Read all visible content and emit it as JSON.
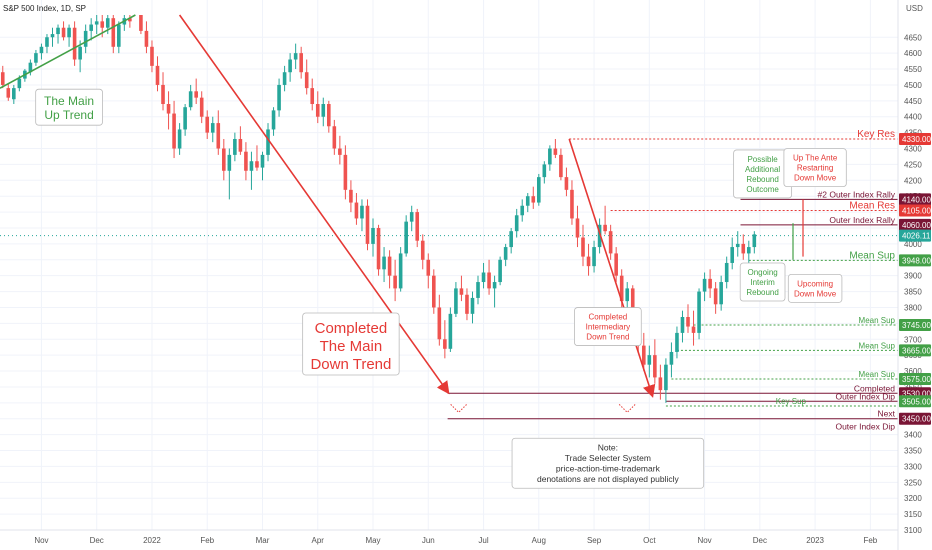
{
  "chart_data": {
    "type": "candlestick",
    "title": "S&P 500 Index, 1D, SP",
    "y_axis_title": "USD",
    "ylim": [
      3100,
      4720
    ],
    "y_ticks": [
      4650,
      4600,
      4550,
      4500,
      4450,
      4400,
      4350,
      4300,
      4250,
      4200,
      4150,
      4100,
      4050,
      4000,
      3950,
      3900,
      3850,
      3800,
      3750,
      3700,
      3650,
      3600,
      3550,
      3500,
      3450,
      3400,
      3350,
      3300,
      3250,
      3200,
      3150,
      3100
    ],
    "x_ticks": [
      "Nov",
      "Dec",
      "2022",
      "Feb",
      "Mar",
      "Apr",
      "May",
      "Jun",
      "Jul",
      "Aug",
      "Sep",
      "Oct",
      "Nov",
      "Dec",
      "2023",
      "Feb"
    ],
    "x_tick_positions": [
      0.5,
      1.5,
      2.5,
      3.5,
      4.5,
      5.5,
      6.5,
      7.5,
      8.5,
      9.5,
      10.5,
      11.5,
      12.5,
      13.5,
      14.5,
      15.5
    ],
    "x_range": [
      -0.25,
      16.0
    ],
    "colors": {
      "up": "#26a69a",
      "down": "#ef5350",
      "trend_up": "#43a047",
      "trend_down": "#e53935",
      "res": "#7a1535",
      "sup": "#43a047",
      "key_res": "#e53935"
    },
    "levels": [
      {
        "price": 4330,
        "tag": "4330.00",
        "text": "Key Res",
        "kind": "key_res",
        "start": 10.05
      },
      {
        "price": 4140,
        "tag": "4140.00",
        "text": "#2 Outer Index Rally",
        "kind": "res",
        "start": 13.15
      },
      {
        "price": 4105,
        "tag": "4105.00",
        "text": "Mean Res",
        "kind": "mean_res",
        "start": 10.8
      },
      {
        "price": 4060,
        "tag": "4060.00",
        "text": "Outer Index Rally",
        "kind": "res",
        "start": 13.15
      },
      {
        "price": 4026.11,
        "tag": "4026.11",
        "text": "",
        "kind": "last",
        "start": -0.25
      },
      {
        "price": 3948,
        "tag": "3948.00",
        "text": "Mean Sup",
        "kind": "mean_sup",
        "start": 13.3
      },
      {
        "price": 3745,
        "tag": "3745.00",
        "text": "Mean Sup",
        "kind": "sup",
        "start": 12.3
      },
      {
        "price": 3665,
        "tag": "3665.00",
        "text": "Mean Sup",
        "kind": "sup",
        "start": 12.0
      },
      {
        "price": 3575,
        "tag": "3575.00",
        "text": "Mean Sup",
        "kind": "sup",
        "start": 11.9
      },
      {
        "price": 3530,
        "tag": "3530.00",
        "text": "Completed",
        "kind": "res",
        "start": 7.85
      },
      {
        "price": 3505,
        "tag": "3505.00",
        "text": "Outer Index Dip",
        "kind": "sup_solid",
        "start": 11.8
      },
      {
        "price": 3490,
        "tag": "",
        "text": "Key Sup",
        "kind": "key_sup",
        "start": 11.8
      },
      {
        "price": 3450,
        "tag": "3450.00",
        "text": "Next",
        "kind": "res",
        "start": 7.85
      },
      {
        "price": 3425,
        "tag": "",
        "text": "Outer Index Dip",
        "kind": "res_text",
        "start": 0
      }
    ],
    "candles": [
      [
        -0.2,
        4540,
        4560,
        4490,
        4500
      ],
      [
        -0.1,
        4490,
        4505,
        4450,
        4460
      ],
      [
        0.0,
        4455,
        4500,
        4440,
        4490
      ],
      [
        0.1,
        4490,
        4530,
        4480,
        4520
      ],
      [
        0.2,
        4520,
        4550,
        4510,
        4545
      ],
      [
        0.3,
        4540,
        4580,
        4530,
        4570
      ],
      [
        0.4,
        4570,
        4610,
        4560,
        4600
      ],
      [
        0.5,
        4600,
        4630,
        4580,
        4620
      ],
      [
        0.6,
        4620,
        4660,
        4600,
        4650
      ],
      [
        0.7,
        4650,
        4680,
        4620,
        4660
      ],
      [
        0.8,
        4660,
        4690,
        4630,
        4680
      ],
      [
        0.9,
        4680,
        4700,
        4640,
        4650
      ],
      [
        1.0,
        4650,
        4690,
        4620,
        4680
      ],
      [
        1.1,
        4680,
        4700,
        4560,
        4580
      ],
      [
        1.2,
        4580,
        4640,
        4540,
        4620
      ],
      [
        1.3,
        4620,
        4690,
        4600,
        4670
      ],
      [
        1.4,
        4670,
        4710,
        4640,
        4690
      ],
      [
        1.5,
        4690,
        4720,
        4660,
        4700
      ],
      [
        1.6,
        4700,
        4720,
        4650,
        4680
      ],
      [
        1.7,
        4680,
        4720,
        4660,
        4710
      ],
      [
        1.8,
        4710,
        4720,
        4600,
        4620
      ],
      [
        1.9,
        4620,
        4700,
        4600,
        4690
      ],
      [
        2.0,
        4690,
        4720,
        4670,
        4710
      ],
      [
        2.1,
        4710,
        4720,
        4680,
        4700
      ],
      [
        2.3,
        4720,
        4720,
        4660,
        4670
      ],
      [
        2.4,
        4670,
        4700,
        4600,
        4620
      ],
      [
        2.5,
        4620,
        4640,
        4540,
        4560
      ],
      [
        2.6,
        4560,
        4590,
        4480,
        4500
      ],
      [
        2.7,
        4500,
        4540,
        4420,
        4440
      ],
      [
        2.8,
        4440,
        4480,
        4360,
        4410
      ],
      [
        2.9,
        4410,
        4450,
        4270,
        4300
      ],
      [
        3.0,
        4300,
        4380,
        4280,
        4360
      ],
      [
        3.1,
        4360,
        4440,
        4340,
        4430
      ],
      [
        3.2,
        4430,
        4500,
        4420,
        4480
      ],
      [
        3.3,
        4480,
        4520,
        4440,
        4460
      ],
      [
        3.4,
        4460,
        4480,
        4380,
        4400
      ],
      [
        3.5,
        4400,
        4420,
        4330,
        4350
      ],
      [
        3.6,
        4350,
        4400,
        4320,
        4380
      ],
      [
        3.7,
        4380,
        4420,
        4280,
        4300
      ],
      [
        3.8,
        4300,
        4330,
        4200,
        4230
      ],
      [
        3.9,
        4230,
        4300,
        4140,
        4280
      ],
      [
        4.0,
        4280,
        4350,
        4260,
        4330
      ],
      [
        4.1,
        4330,
        4370,
        4280,
        4290
      ],
      [
        4.2,
        4290,
        4320,
        4200,
        4230
      ],
      [
        4.3,
        4230,
        4290,
        4170,
        4260
      ],
      [
        4.4,
        4260,
        4310,
        4230,
        4240
      ],
      [
        4.5,
        4240,
        4290,
        4200,
        4280
      ],
      [
        4.6,
        4280,
        4380,
        4260,
        4360
      ],
      [
        4.7,
        4360,
        4430,
        4340,
        4420
      ],
      [
        4.8,
        4420,
        4520,
        4400,
        4500
      ],
      [
        4.9,
        4500,
        4560,
        4480,
        4540
      ],
      [
        5.0,
        4540,
        4600,
        4510,
        4580
      ],
      [
        5.1,
        4580,
        4630,
        4550,
        4600
      ],
      [
        5.2,
        4600,
        4620,
        4520,
        4540
      ],
      [
        5.3,
        4540,
        4580,
        4470,
        4490
      ],
      [
        5.4,
        4490,
        4520,
        4420,
        4440
      ],
      [
        5.5,
        4440,
        4480,
        4380,
        4400
      ],
      [
        5.6,
        4400,
        4460,
        4370,
        4440
      ],
      [
        5.7,
        4440,
        4450,
        4350,
        4370
      ],
      [
        5.8,
        4370,
        4390,
        4280,
        4300
      ],
      [
        5.9,
        4300,
        4340,
        4250,
        4280
      ],
      [
        6.0,
        4280,
        4310,
        4140,
        4170
      ],
      [
        6.1,
        4170,
        4200,
        4100,
        4130
      ],
      [
        6.2,
        4130,
        4160,
        4060,
        4080
      ],
      [
        6.3,
        4080,
        4140,
        4040,
        4120
      ],
      [
        6.4,
        4120,
        4140,
        3980,
        4000
      ],
      [
        6.5,
        4000,
        4080,
        3960,
        4050
      ],
      [
        6.6,
        4050,
        4060,
        3900,
        3920
      ],
      [
        6.7,
        3920,
        3990,
        3880,
        3960
      ],
      [
        6.8,
        3960,
        3980,
        3860,
        3900
      ],
      [
        6.9,
        3900,
        3950,
        3820,
        3860
      ],
      [
        7.0,
        3860,
        3990,
        3850,
        3970
      ],
      [
        7.1,
        3970,
        4090,
        3960,
        4070
      ],
      [
        7.2,
        4070,
        4120,
        4040,
        4100
      ],
      [
        7.3,
        4100,
        4110,
        3990,
        4010
      ],
      [
        7.4,
        4010,
        4030,
        3920,
        3950
      ],
      [
        7.5,
        3950,
        3970,
        3860,
        3900
      ],
      [
        7.6,
        3900,
        3920,
        3780,
        3800
      ],
      [
        7.7,
        3800,
        3840,
        3680,
        3700
      ],
      [
        7.8,
        3700,
        3760,
        3640,
        3670
      ],
      [
        7.9,
        3670,
        3800,
        3660,
        3780
      ],
      [
        8.0,
        3780,
        3880,
        3770,
        3860
      ],
      [
        8.1,
        3860,
        3900,
        3820,
        3840
      ],
      [
        8.2,
        3840,
        3860,
        3760,
        3780
      ],
      [
        8.3,
        3780,
        3850,
        3750,
        3830
      ],
      [
        8.4,
        3830,
        3900,
        3810,
        3880
      ],
      [
        8.5,
        3880,
        3940,
        3860,
        3910
      ],
      [
        8.6,
        3910,
        3950,
        3840,
        3860
      ],
      [
        8.7,
        3860,
        3900,
        3800,
        3880
      ],
      [
        8.8,
        3880,
        3960,
        3870,
        3950
      ],
      [
        8.9,
        3950,
        4000,
        3930,
        3990
      ],
      [
        9.0,
        3990,
        4050,
        3970,
        4040
      ],
      [
        9.1,
        4040,
        4110,
        4020,
        4090
      ],
      [
        9.2,
        4090,
        4140,
        4070,
        4120
      ],
      [
        9.3,
        4120,
        4160,
        4100,
        4150
      ],
      [
        9.4,
        4150,
        4180,
        4110,
        4130
      ],
      [
        9.5,
        4130,
        4220,
        4120,
        4210
      ],
      [
        9.6,
        4210,
        4260,
        4190,
        4250
      ],
      [
        9.7,
        4250,
        4310,
        4230,
        4300
      ],
      [
        9.8,
        4300,
        4330,
        4270,
        4280
      ],
      [
        9.9,
        4280,
        4300,
        4200,
        4210
      ],
      [
        10.0,
        4210,
        4240,
        4150,
        4170
      ],
      [
        10.1,
        4170,
        4200,
        4060,
        4080
      ],
      [
        10.2,
        4080,
        4120,
        3990,
        4020
      ],
      [
        10.3,
        4020,
        4060,
        3930,
        3960
      ],
      [
        10.4,
        3960,
        4000,
        3900,
        3930
      ],
      [
        10.5,
        3930,
        4010,
        3910,
        3990
      ],
      [
        10.6,
        3990,
        4080,
        3970,
        4060
      ],
      [
        10.7,
        4060,
        4120,
        4030,
        4040
      ],
      [
        10.8,
        4040,
        4060,
        3950,
        3970
      ],
      [
        10.9,
        3970,
        3990,
        3880,
        3900
      ],
      [
        11.0,
        3900,
        3920,
        3790,
        3820
      ],
      [
        11.1,
        3820,
        3880,
        3780,
        3860
      ],
      [
        11.2,
        3860,
        3870,
        3740,
        3760
      ],
      [
        11.3,
        3760,
        3780,
        3660,
        3680
      ],
      [
        11.4,
        3680,
        3720,
        3600,
        3620
      ],
      [
        11.5,
        3620,
        3680,
        3580,
        3650
      ],
      [
        11.6,
        3650,
        3700,
        3560,
        3580
      ],
      [
        11.7,
        3580,
        3620,
        3510,
        3540
      ],
      [
        11.8,
        3540,
        3640,
        3500,
        3620
      ],
      [
        11.9,
        3620,
        3690,
        3580,
        3660
      ],
      [
        12.0,
        3660,
        3740,
        3640,
        3720
      ],
      [
        12.1,
        3720,
        3790,
        3690,
        3770
      ],
      [
        12.2,
        3770,
        3810,
        3720,
        3740
      ],
      [
        12.3,
        3740,
        3790,
        3680,
        3720
      ],
      [
        12.4,
        3720,
        3860,
        3700,
        3850
      ],
      [
        12.5,
        3850,
        3910,
        3820,
        3890
      ],
      [
        12.6,
        3890,
        3920,
        3830,
        3860
      ],
      [
        12.7,
        3860,
        3880,
        3780,
        3810
      ],
      [
        12.8,
        3810,
        3900,
        3790,
        3880
      ],
      [
        12.9,
        3880,
        3960,
        3860,
        3940
      ],
      [
        13.0,
        3940,
        4020,
        3920,
        3990
      ],
      [
        13.1,
        3990,
        4040,
        3960,
        4000
      ],
      [
        13.2,
        4000,
        4030,
        3950,
        3970
      ],
      [
        13.3,
        3970,
        4010,
        3930,
        3990
      ],
      [
        13.4,
        3990,
        4040,
        3970,
        4030
      ]
    ],
    "annotations": [
      {
        "lines": [
          "The Main",
          "Up Trend"
        ],
        "color": "#43a047",
        "x": 1.0,
        "price": 4430
      },
      {
        "lines": [
          "Completed",
          "The Main",
          "Down Trend"
        ],
        "color": "#e53935",
        "x": 6.1,
        "price": 3685
      },
      {
        "lines": [
          "Completed",
          "Intermediary",
          "Down Trend"
        ],
        "color": "#e53935",
        "x": 10.75,
        "price": 3740
      },
      {
        "lines": [
          "Possible",
          "Additional",
          "Rebound",
          "Outcome"
        ],
        "color": "#43a047",
        "x": 13.55,
        "price": 4220
      },
      {
        "lines": [
          "Up The Ante",
          "Restarting",
          "Down Move"
        ],
        "color": "#e53935",
        "x": 14.5,
        "price": 4240
      },
      {
        "lines": [
          "Ongoing",
          "Interim",
          "Rebound"
        ],
        "color": "#43a047",
        "x": 13.55,
        "price": 3880
      },
      {
        "lines": [
          "Upcoming",
          "Down Move"
        ],
        "color": "#e53935",
        "x": 14.5,
        "price": 3860
      },
      {
        "lines": [
          "Note:",
          "Trade Selecter System",
          "price-action-time-trademark",
          "denotations are not displayed publicly"
        ],
        "color": "#333333",
        "x": 10.75,
        "price": 3310
      }
    ],
    "trendlines": [
      {
        "from": [
          -0.25,
          4490
        ],
        "to": [
          2.2,
          4720
        ],
        "color": "#43a047",
        "arrow": false
      },
      {
        "from": [
          3.0,
          4720
        ],
        "to": [
          7.85,
          3535
        ],
        "color": "#e53935",
        "arrow": true
      },
      {
        "from": [
          10.05,
          4330
        ],
        "to": [
          11.55,
          3525
        ],
        "color": "#e53935",
        "arrow": true
      }
    ]
  }
}
